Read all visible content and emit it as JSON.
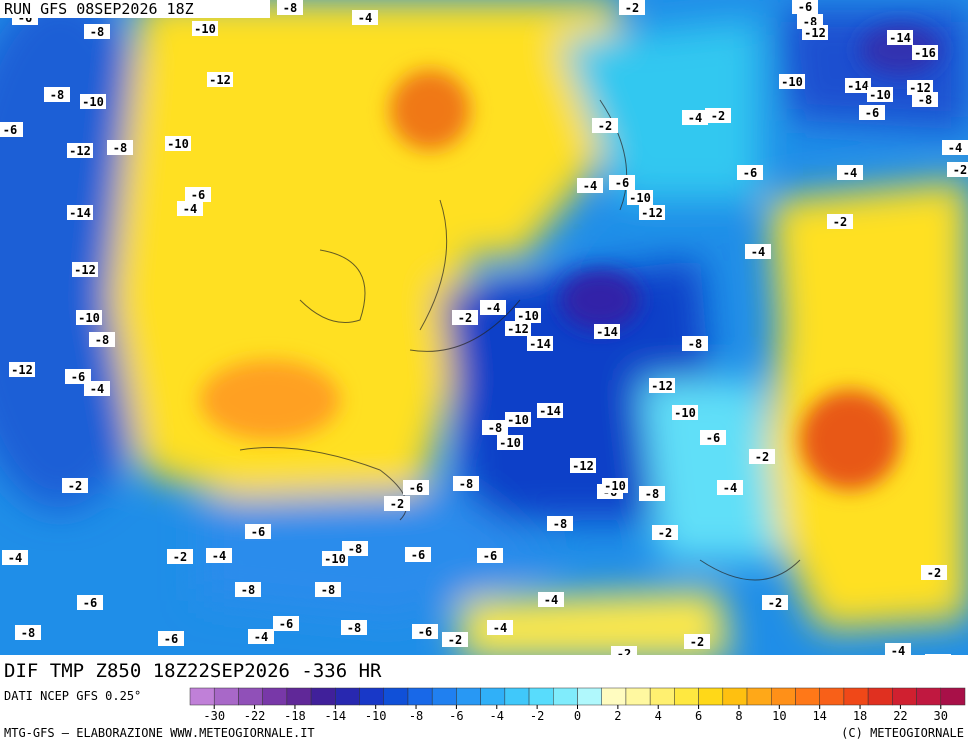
{
  "header": {
    "run": "RUN GFS 08SEP2026 18Z"
  },
  "footer": {
    "product": "DIF TMP Z850 18Z22SEP2026 -336 HR",
    "source": "DATI NCEP GFS 0.25°",
    "credit": "MTG-GFS — ELABORAZIONE WWW.METEOGIORNALE.IT",
    "copyright": "(C) METEOGIORNALE"
  },
  "colorbar": {
    "ticks": [
      -30,
      -22,
      -18,
      -14,
      -10,
      -8,
      -6,
      -4,
      -2,
      0,
      2,
      4,
      6,
      8,
      10,
      14,
      18,
      22,
      30
    ]
  },
  "contour_labels": [
    -6,
    -8,
    -10,
    -8,
    -4,
    -2,
    -6,
    -8,
    -12,
    -14,
    -16,
    -8,
    -10,
    -12,
    -6,
    -10,
    -14,
    -10,
    -12,
    -8,
    -6,
    -12,
    -8,
    -10,
    -4,
    -2,
    -2,
    -4,
    -6,
    -4,
    -4,
    -6,
    -10,
    -12,
    -6,
    -4,
    -2,
    -14,
    -2,
    -4,
    -12,
    -10,
    -8,
    -2,
    -4,
    -10,
    -12,
    -14,
    -14,
    -8,
    -12,
    -6,
    -4,
    -12,
    -14,
    -10,
    -8,
    -10,
    -10,
    -6,
    -2,
    -12,
    -6,
    -10,
    -8,
    -6,
    -2,
    -2,
    -8,
    -4,
    -8,
    -6,
    -2,
    -8,
    -10,
    -6,
    -6,
    -4,
    -2,
    -4,
    -8,
    -8,
    -6,
    -4,
    -2,
    -2,
    -8,
    -6,
    -6,
    -4,
    -8,
    -6,
    -2,
    -4,
    -2,
    -2,
    -4,
    -4
  ]
}
